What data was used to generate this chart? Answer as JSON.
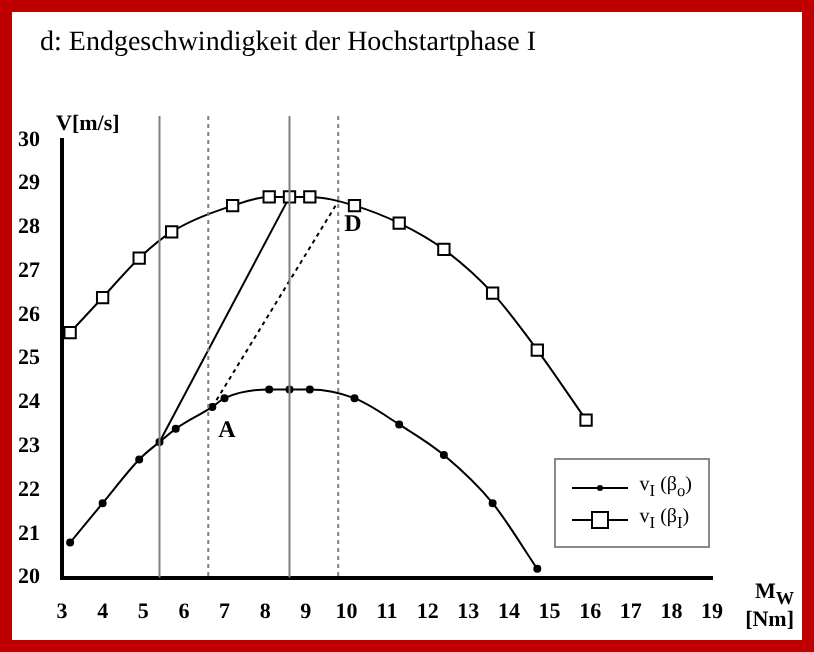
{
  "chart_data": {
    "type": "line",
    "title": "d:  Endgeschwindigkeit der Hochstartphase I",
    "xlabel": "M$_{W}$ [Nm]",
    "ylabel": "V[m/s]",
    "xlim": [
      3,
      19
    ],
    "xticks": [
      3,
      4,
      5,
      6,
      7,
      8,
      9,
      10,
      11,
      12,
      13,
      14,
      15,
      16,
      17,
      18,
      19
    ],
    "ylim": [
      20,
      30
    ],
    "yticks": [
      20,
      21,
      22,
      23,
      24,
      25,
      26,
      27,
      28,
      29,
      30
    ],
    "grid": false,
    "legend": "bottom right",
    "series": [
      {
        "name": "v$_{I}$ (β$_{o}$)",
        "color": "#000000",
        "marker": "circle",
        "line_style": "solid",
        "x": [
          3.2,
          4,
          4.9,
          5.4,
          5.8,
          6.7,
          7,
          8.1,
          8.6,
          9.1,
          10.2,
          11.3,
          12.4,
          13.6,
          14.7
        ],
        "values": [
          20.8,
          21.7,
          22.7,
          23.1,
          23.4,
          23.9,
          24.1,
          24.3,
          24.3,
          24.3,
          24.1,
          23.5,
          22.8,
          21.7,
          20.2
        ]
      },
      {
        "name": "v$_{I}$ (β$_{I}$)",
        "color": "#000000",
        "marker": "square",
        "line_style": "solid",
        "x": [
          3.2,
          4,
          4.9,
          5.7,
          7.2,
          8.1,
          8.6,
          9.1,
          10.2,
          11.3,
          12.4,
          13.6,
          14.7,
          15.9
        ],
        "values": [
          25.6,
          26.4,
          27.3,
          27.9,
          28.5,
          28.7,
          28.7,
          28.7,
          28.5,
          28.1,
          27.5,
          26.5,
          25.2,
          23.6
        ]
      },
      {
        "color": "#000000",
        "marker": "none",
        "line_style": "solid",
        "x": [
          5.4,
          8.6
        ],
        "values": [
          23.1,
          28.7
        ]
      },
      {
        "color": "#000000",
        "marker": "none",
        "line_style": "dotted",
        "x": [
          6.7,
          9.8
        ],
        "values": [
          23.9,
          28.6
        ]
      }
    ],
    "ref_lines": [
      {
        "axis": "x",
        "value": 5.4,
        "line_style": "solid",
        "color": "#808080"
      },
      {
        "axis": "x",
        "value": 6.6,
        "line_style": "dotted",
        "color": "#808080"
      },
      {
        "axis": "x",
        "value": 8.6,
        "line_style": "solid",
        "color": "#808080"
      },
      {
        "axis": "x",
        "value": 9.8,
        "line_style": "dotted",
        "color": "#808080"
      }
    ],
    "annotations": [
      {
        "text": "A",
        "x": 6.7,
        "y": 23.9
      },
      {
        "text": "D",
        "x": 9.8,
        "y": 28.6
      }
    ]
  }
}
